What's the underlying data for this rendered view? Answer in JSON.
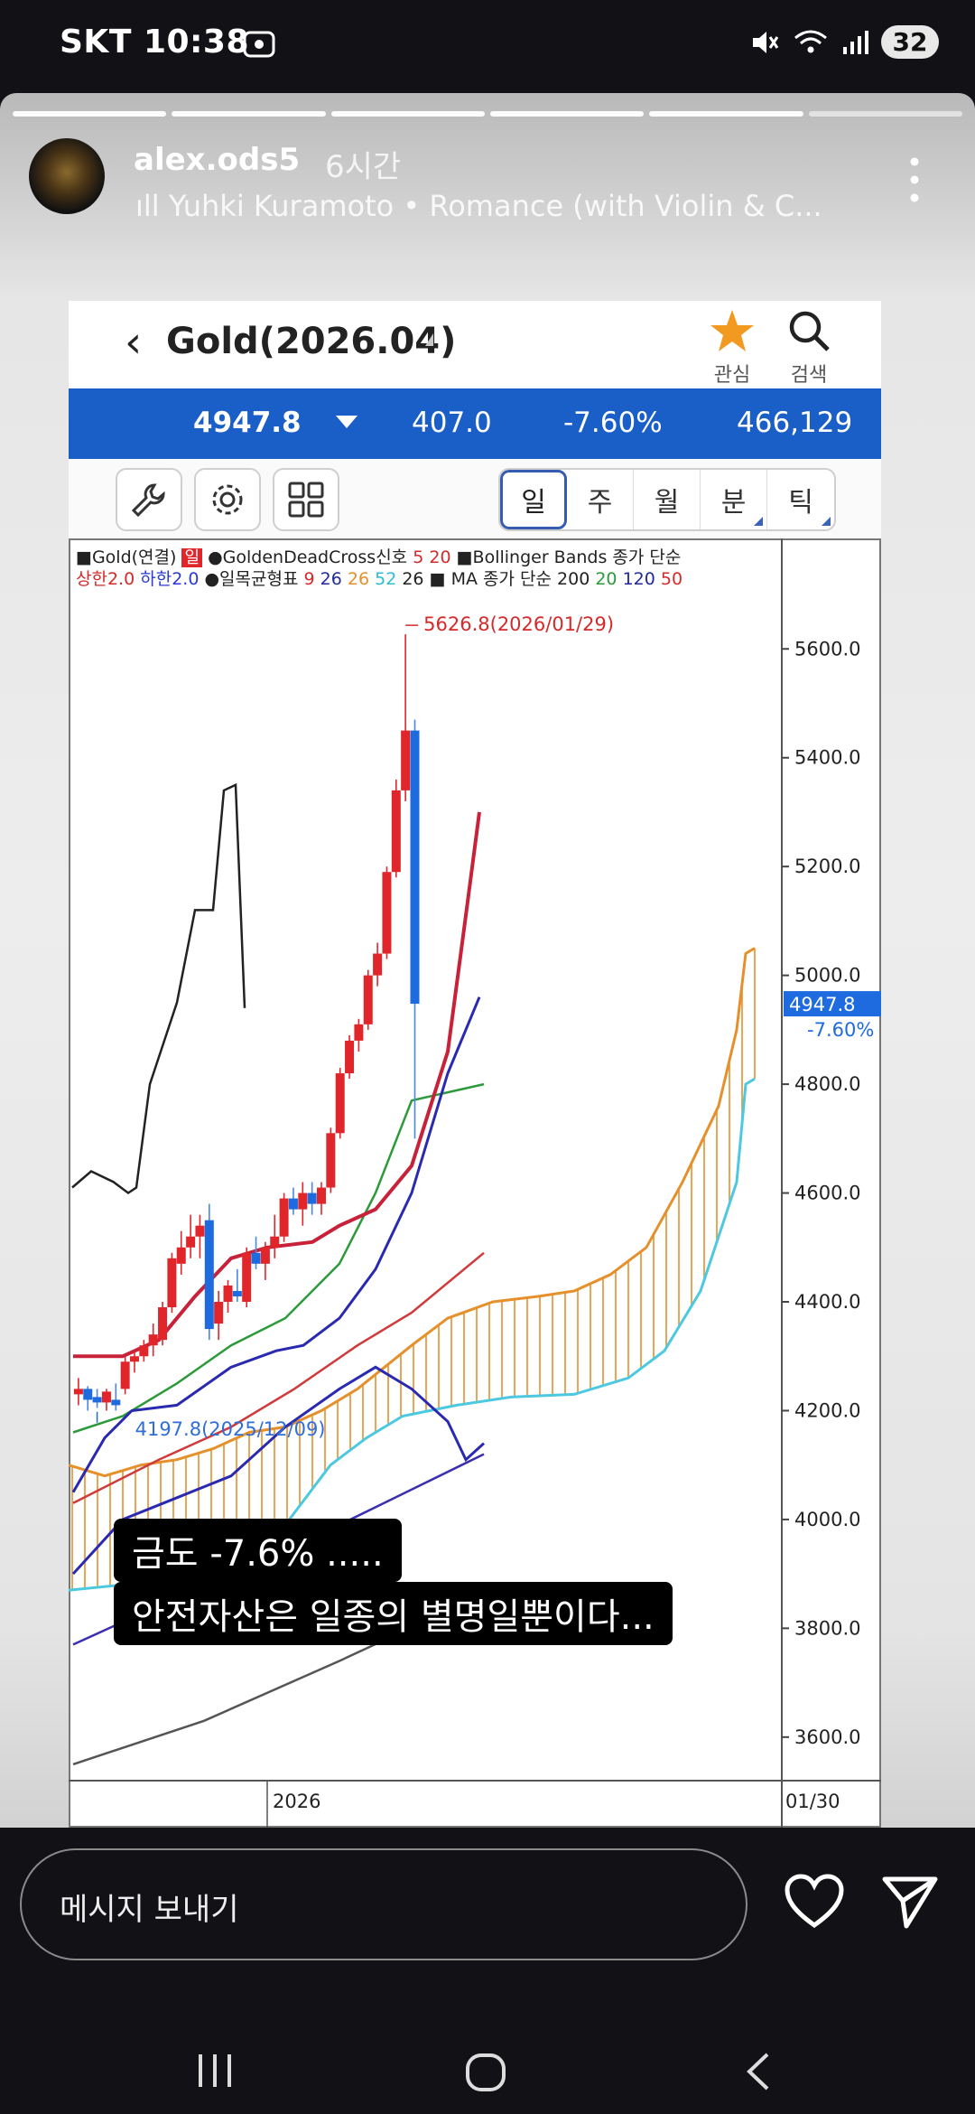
{
  "status_bar": {
    "carrier": "SKT",
    "time": "10:38",
    "battery": "32"
  },
  "story": {
    "username": "alex.ods5",
    "posted_ago": "6시간",
    "music": "Yuhki Kuramoto • Romance (with Violin & C...",
    "progress_total": 6,
    "progress_done": 5
  },
  "app": {
    "title": "Gold(2026.04)",
    "watch_label": "관심",
    "search_label": "검색",
    "quote": {
      "price": "4947.8",
      "change": "407.0",
      "change_pct": "-7.60%",
      "volume": "466,129"
    },
    "periods": [
      "일",
      "주",
      "월",
      "분",
      "틱"
    ],
    "active_period": "일",
    "legend_line1": {
      "instrument": "■Gold(연결)",
      "badge": "일",
      "gdc": "●GoldenDeadCross신호",
      "gdc_p1": "5",
      "gdc_p2": "20",
      "bb": "■Bollinger Bands 종가 단순"
    },
    "legend_line2": {
      "upper": "상한2.0",
      "lower": "하한2.0",
      "ichimoku": "●일목균형표",
      "ich_9": "9",
      "ich_26a": "26",
      "ich_26b": "26",
      "ich_52": "52",
      "ich_26c": "26",
      "ma": "■ MA 종가 단순",
      "ma_200": "200",
      "ma_20": "20",
      "ma_120": "120",
      "ma_50": "50"
    }
  },
  "chart_data": {
    "type": "candlestick",
    "y_ticks": [
      3600,
      3800,
      4000,
      4200,
      4400,
      4600,
      4800,
      5000,
      5200,
      5400,
      5600
    ],
    "y_tick_labels": [
      "3600.0",
      "3800.0",
      "4000.0",
      "4200.0",
      "4400.0",
      "4600.0",
      "4800.0",
      "5000.0",
      "5200.0",
      "5400.0",
      "5600.0"
    ],
    "ylim": [
      3520,
      5720
    ],
    "x_label": "2026",
    "x_end_label": "01/30",
    "high_annotation": "5626.8(2026/01/29)",
    "low_annotation": "4197.8(2025/12/09)",
    "current_price_label": "4947.8",
    "current_change_label": "-7.60%",
    "colors": {
      "up": "#e0262a",
      "down": "#1e6be0",
      "cloud": "#e5902b",
      "span_b": "#4cc9e0",
      "ma_black": "#222222",
      "grid_axis": "#555555"
    }
  },
  "caption": {
    "line1": "금도 -7.6% .....",
    "line2": "안전자산은 일종의 별명일뿐이다..."
  },
  "reply": {
    "placeholder": "메시지 보내기"
  }
}
